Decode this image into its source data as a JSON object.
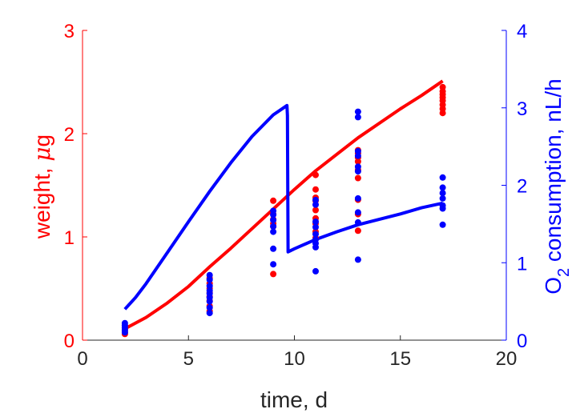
{
  "chart_data": {
    "type": "scatter",
    "xlabel": "time, d",
    "ylabel_left": {
      "prefix": "weight, ",
      "mu": "μ",
      "suffix": "g"
    },
    "ylabel_right": {
      "prefix": "O",
      "sub": "2",
      "suffix": " consumption, nL/h"
    },
    "xlim": [
      0,
      20
    ],
    "ylim_left": [
      0,
      3
    ],
    "ylim_right": [
      0,
      4
    ],
    "x_ticks": [
      "0",
      "5",
      "10",
      "15",
      "20"
    ],
    "y_ticks_left": [
      "0",
      "1",
      "2",
      "3"
    ],
    "y_ticks_right": [
      "0",
      "1",
      "2",
      "3",
      "4"
    ],
    "grid": false,
    "colors": {
      "left": "#ff0000",
      "right": "#0000ff",
      "axis": "#262626"
    },
    "series": [
      {
        "axis": "left",
        "kind": "points",
        "color": "#ff0000",
        "points": [
          [
            2,
            0.06
          ],
          [
            2,
            0.08
          ],
          [
            2,
            0.1
          ],
          [
            2,
            0.12
          ],
          [
            2,
            0.14
          ],
          [
            6,
            0.28
          ],
          [
            6,
            0.33
          ],
          [
            6,
            0.38
          ],
          [
            6,
            0.42
          ],
          [
            6,
            0.46
          ],
          [
            6,
            0.5
          ],
          [
            6,
            0.55
          ],
          [
            6,
            0.6
          ],
          [
            9,
            0.64
          ],
          [
            9,
            1.1
          ],
          [
            9,
            1.13
          ],
          [
            9,
            1.17
          ],
          [
            9,
            1.22
          ],
          [
            9,
            1.35
          ],
          [
            11,
            0.99
          ],
          [
            11,
            1.05
          ],
          [
            11,
            1.13
          ],
          [
            11,
            1.18
          ],
          [
            11,
            1.26
          ],
          [
            11,
            1.35
          ],
          [
            11,
            1.38
          ],
          [
            11,
            1.46
          ],
          [
            11,
            1.6
          ],
          [
            13,
            1.06
          ],
          [
            13,
            1.22
          ],
          [
            13,
            1.36
          ],
          [
            13,
            1.57
          ],
          [
            13,
            1.65
          ],
          [
            13,
            1.73
          ],
          [
            13,
            1.77
          ],
          [
            13,
            1.81
          ],
          [
            13,
            1.84
          ],
          [
            17,
            2.2
          ],
          [
            17,
            2.24
          ],
          [
            17,
            2.28
          ],
          [
            17,
            2.32
          ],
          [
            17,
            2.35
          ],
          [
            17,
            2.38
          ],
          [
            17,
            2.41
          ],
          [
            17,
            2.45
          ]
        ]
      },
      {
        "axis": "right",
        "kind": "points",
        "color": "#0000ff",
        "points": [
          [
            2,
            0.1
          ],
          [
            2,
            0.13
          ],
          [
            2,
            0.16
          ],
          [
            2,
            0.19
          ],
          [
            2,
            0.22
          ],
          [
            6,
            0.35
          ],
          [
            6,
            0.42
          ],
          [
            6,
            0.5
          ],
          [
            6,
            0.55
          ],
          [
            6,
            0.6
          ],
          [
            6,
            0.64
          ],
          [
            6,
            0.7
          ],
          [
            6,
            0.78
          ],
          [
            6,
            0.84
          ],
          [
            9,
            0.98
          ],
          [
            9,
            1.18
          ],
          [
            9,
            1.4
          ],
          [
            9,
            1.47
          ],
          [
            9,
            1.55
          ],
          [
            9,
            1.62
          ],
          [
            9,
            1.67
          ],
          [
            11,
            0.89
          ],
          [
            11,
            1.2
          ],
          [
            11,
            1.25
          ],
          [
            11,
            1.3
          ],
          [
            11,
            1.37
          ],
          [
            11,
            1.46
          ],
          [
            11,
            1.53
          ],
          [
            11,
            1.75
          ],
          [
            11,
            1.81
          ],
          [
            13,
            1.04
          ],
          [
            13,
            1.52
          ],
          [
            13,
            1.65
          ],
          [
            13,
            1.83
          ],
          [
            13,
            2.18
          ],
          [
            13,
            2.24
          ],
          [
            13,
            2.38
          ],
          [
            13,
            2.44
          ],
          [
            13,
            2.88
          ],
          [
            13,
            2.95
          ],
          [
            17,
            1.49
          ],
          [
            17,
            1.7
          ],
          [
            17,
            1.74
          ],
          [
            17,
            1.83
          ],
          [
            17,
            1.9
          ],
          [
            17,
            1.97
          ],
          [
            17,
            2.1
          ]
        ]
      },
      {
        "axis": "left",
        "kind": "curve",
        "color": "#ff0000",
        "x": [
          2,
          3,
          4,
          5,
          6,
          7,
          8,
          9,
          10,
          11,
          12,
          13,
          14,
          15,
          16,
          17
        ],
        "y": [
          0.11,
          0.22,
          0.36,
          0.52,
          0.71,
          0.89,
          1.08,
          1.27,
          1.46,
          1.64,
          1.8,
          1.96,
          2.1,
          2.24,
          2.37,
          2.51
        ]
      },
      {
        "axis": "right",
        "kind": "curve",
        "color": "#0000ff",
        "x": [
          2,
          2.5,
          3,
          4,
          5,
          6,
          7,
          8,
          9,
          9.65,
          9.67,
          9.7,
          10,
          11,
          12,
          13,
          14,
          15,
          16,
          17
        ],
        "y": [
          0.4,
          0.55,
          0.73,
          1.13,
          1.53,
          1.92,
          2.29,
          2.63,
          2.91,
          3.03,
          2.9,
          1.14,
          1.18,
          1.3,
          1.4,
          1.49,
          1.56,
          1.63,
          1.71,
          1.77
        ]
      }
    ]
  }
}
